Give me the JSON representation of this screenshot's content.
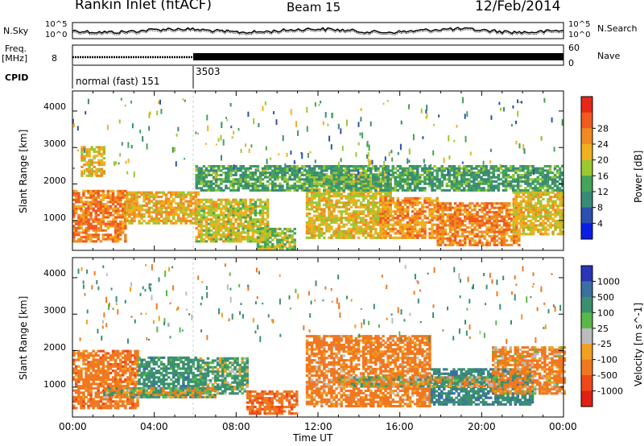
{
  "header": {
    "station": "Rankin Inlet (fitACF)",
    "beam": "Beam 15",
    "date": "12/Feb/2014"
  },
  "noise_panel": {
    "left_label": "N.Sky",
    "right_label": "N.Search",
    "left_ticks": [
      "10^5",
      "10^0"
    ],
    "right_ticks": [
      "10^5",
      "10^0"
    ]
  },
  "freq_panel": {
    "left_label_1": "Freq.",
    "left_label_2": "[MHz]",
    "left_tick": "8",
    "right_label": "Nave",
    "right_ticks": [
      "60",
      "0"
    ]
  },
  "cpid_panel": {
    "label": "CPID",
    "mode_1": "normal (fast) 151",
    "mode_2": "3503",
    "switch_hour": 6.0
  },
  "axes": {
    "xlabel": "Time UT",
    "xticks": [
      "00:00",
      "04:00",
      "08:00",
      "12:00",
      "16:00",
      "20:00",
      "00:00"
    ],
    "ylabel": "Slant Range [km]",
    "yticks": [
      "1000",
      "2000",
      "3000",
      "4000"
    ]
  },
  "colors": {
    "gray_scatter": "#b9b9b9"
  },
  "chart_data": [
    {
      "type": "heatmap",
      "xlabel": "Time UT",
      "ylabel": "Slant Range [km]",
      "xlim": [
        0,
        24
      ],
      "ylim": [
        180,
        4550
      ],
      "colorbar": {
        "title": "Power [dB]",
        "ticks": [
          "4",
          "8",
          "12",
          "16",
          "20",
          "24",
          "28"
        ],
        "levels": [
          0,
          4,
          8,
          12,
          16,
          20,
          24,
          28,
          32
        ],
        "colors": [
          "#0a1ee6",
          "#2d4fb0",
          "#3a8a78",
          "#45a35a",
          "#9ac832",
          "#f0b020",
          "#f08a22",
          "#f05a1e",
          "#e62818"
        ]
      },
      "regions": [
        {
          "t0": 0.0,
          "t1": 2.6,
          "r0": 400,
          "r1": 1800,
          "value": 27
        },
        {
          "t0": 0.4,
          "t1": 1.5,
          "r0": 2200,
          "r1": 3000,
          "value": 22
        },
        {
          "t0": 2.6,
          "t1": 6.2,
          "r0": 900,
          "r1": 1800,
          "value": 23
        },
        {
          "t0": 6.0,
          "t1": 9.5,
          "r0": 400,
          "r1": 1600,
          "value": 20
        },
        {
          "t0": 9.0,
          "t1": 10.8,
          "r0": 200,
          "r1": 800,
          "value": 17
        },
        {
          "t0": 11.4,
          "t1": 15.5,
          "r0": 500,
          "r1": 2300,
          "value": 21
        },
        {
          "t0": 15.0,
          "t1": 17.8,
          "r0": 500,
          "r1": 1600,
          "value": 25
        },
        {
          "t0": 17.8,
          "t1": 21.8,
          "r0": 300,
          "r1": 1500,
          "value": 27
        },
        {
          "t0": 21.5,
          "t1": 24.0,
          "r0": 600,
          "r1": 1800,
          "value": 21
        },
        {
          "t0": 6.0,
          "t1": 24.0,
          "r0": 1800,
          "r1": 2500,
          "value": 13
        }
      ]
    },
    {
      "type": "heatmap",
      "xlabel": "Time UT",
      "ylabel": "Slant Range [km]",
      "xlim": [
        0,
        24
      ],
      "ylim": [
        180,
        4550
      ],
      "colorbar": {
        "title": "Velocity [m s^-1]",
        "ticks": [
          "1000",
          "500",
          "100",
          "25",
          "-25",
          "-100",
          "-500",
          "-1000"
        ],
        "levels": [
          1000,
          500,
          100,
          25,
          -25,
          -100,
          -500,
          -1000
        ],
        "colors": [
          "#2a35b8",
          "#3a70a0",
          "#3a9070",
          "#5ab848",
          "#bcbcbc",
          "#f2a020",
          "#f07820",
          "#ee4818",
          "#e02010"
        ]
      },
      "regions": [
        {
          "t0": 0.0,
          "t1": 3.2,
          "r0": 400,
          "r1": 2000,
          "value": -300
        },
        {
          "t0": 3.2,
          "t1": 6.2,
          "r0": 700,
          "r1": 1800,
          "value": 300
        },
        {
          "t0": 6.2,
          "t1": 8.5,
          "r0": 800,
          "r1": 1800,
          "value": 150
        },
        {
          "t0": 8.5,
          "t1": 11.0,
          "r0": 250,
          "r1": 900,
          "value": -400
        },
        {
          "t0": 11.4,
          "t1": 17.5,
          "r0": 450,
          "r1": 2400,
          "value": -250
        },
        {
          "t0": 17.5,
          "t1": 22.5,
          "r0": 500,
          "r1": 1500,
          "value": 400
        },
        {
          "t0": 20.5,
          "t1": 24.0,
          "r0": 800,
          "r1": 2100,
          "value": -200
        },
        {
          "t0": 1.5,
          "t1": 7.0,
          "r0": 700,
          "r1": 1000,
          "value": 0
        },
        {
          "t0": 13.0,
          "t1": 21.0,
          "r0": 1000,
          "r1": 1300,
          "value": 0
        }
      ]
    }
  ]
}
